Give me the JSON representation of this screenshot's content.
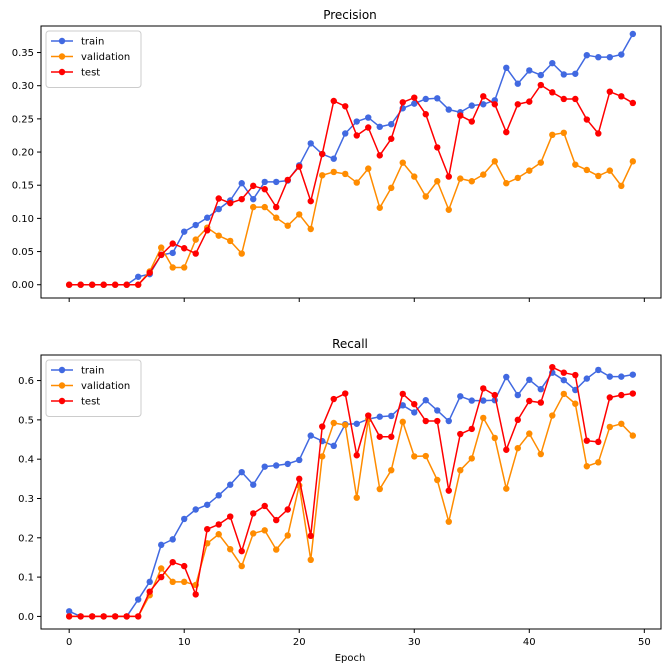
{
  "chart_data": [
    {
      "type": "line",
      "title": "Precision",
      "xlabel": "",
      "ylabel": "",
      "xlim": [
        -2.45,
        51.45
      ],
      "ylim": [
        -0.02,
        0.39
      ],
      "xticks": [
        0,
        10,
        20,
        30,
        40,
        50
      ],
      "xtick_labels": [
        "",
        "",
        "",
        "",
        "",
        ""
      ],
      "yticks": [
        0.0,
        0.05,
        0.1,
        0.15,
        0.2,
        0.25,
        0.3,
        0.35
      ],
      "ytick_labels": [
        "0.00",
        "0.05",
        "0.10",
        "0.15",
        "0.20",
        "0.25",
        "0.30",
        "0.35"
      ],
      "legend": "upper-left",
      "grid": false,
      "x": [
        0,
        1,
        2,
        3,
        4,
        5,
        6,
        7,
        8,
        9,
        10,
        11,
        12,
        13,
        14,
        15,
        16,
        17,
        18,
        19,
        20,
        21,
        22,
        23,
        24,
        25,
        26,
        27,
        28,
        29,
        30,
        31,
        32,
        33,
        34,
        35,
        36,
        37,
        38,
        39,
        40,
        41,
        42,
        43,
        44,
        45,
        46,
        47,
        48,
        49
      ],
      "series": [
        {
          "name": "train",
          "color": "#4169e1",
          "values": [
            0,
            0,
            0,
            0,
            0,
            0,
            0.012,
            0.016,
            0.045,
            0.048,
            0.08,
            0.09,
            0.101,
            0.114,
            0.127,
            0.153,
            0.129,
            0.155,
            0.155,
            0.157,
            0.18,
            0.213,
            0.197,
            0.19,
            0.228,
            0.246,
            0.252,
            0.238,
            0.242,
            0.266,
            0.273,
            0.28,
            0.281,
            0.264,
            0.26,
            0.27,
            0.272,
            0.278,
            0.327,
            0.303,
            0.323,
            0.316,
            0.334,
            0.317,
            0.318,
            0.346,
            0.343,
            0.343,
            0.347,
            0.378
          ]
        },
        {
          "name": "validation",
          "color": "#ff8c00",
          "values": [
            0,
            0,
            0,
            0,
            0,
            0,
            0,
            0.02,
            0.056,
            0.026,
            0.026,
            0.068,
            0.086,
            0.074,
            0.066,
            0.047,
            0.117,
            0.117,
            0.101,
            0.089,
            0.106,
            0.084,
            0.165,
            0.17,
            0.167,
            0.154,
            0.175,
            0.116,
            0.146,
            0.184,
            0.163,
            0.133,
            0.156,
            0.113,
            0.16,
            0.156,
            0.166,
            0.186,
            0.153,
            0.161,
            0.172,
            0.184,
            0.226,
            0.229,
            0.181,
            0.173,
            0.164,
            0.172,
            0.149,
            0.186
          ]
        },
        {
          "name": "test",
          "color": "#ff0000",
          "values": [
            0,
            0,
            0,
            0,
            0,
            0,
            0,
            0.018,
            0.045,
            0.062,
            0.055,
            0.047,
            0.082,
            0.13,
            0.123,
            0.129,
            0.149,
            0.144,
            0.117,
            0.158,
            0.178,
            0.126,
            0.197,
            0.277,
            0.269,
            0.225,
            0.237,
            0.195,
            0.22,
            0.275,
            0.282,
            0.257,
            0.207,
            0.163,
            0.255,
            0.246,
            0.284,
            0.272,
            0.23,
            0.272,
            0.276,
            0.301,
            0.29,
            0.28,
            0.28,
            0.249,
            0.228,
            0.291,
            0.284,
            0.274
          ]
        }
      ]
    },
    {
      "type": "line",
      "title": "Recall",
      "xlabel": "Epoch",
      "ylabel": "",
      "xlim": [
        -2.45,
        51.45
      ],
      "ylim": [
        -0.032,
        0.665
      ],
      "xticks": [
        0,
        10,
        20,
        30,
        40,
        50
      ],
      "xtick_labels": [
        "0",
        "10",
        "20",
        "30",
        "40",
        "50"
      ],
      "yticks": [
        0.0,
        0.1,
        0.2,
        0.3,
        0.4,
        0.5,
        0.6
      ],
      "ytick_labels": [
        "0.0",
        "0.1",
        "0.2",
        "0.3",
        "0.4",
        "0.5",
        "0.6"
      ],
      "legend": "upper-left",
      "grid": false,
      "x": [
        0,
        1,
        2,
        3,
        4,
        5,
        6,
        7,
        8,
        9,
        10,
        11,
        12,
        13,
        14,
        15,
        16,
        17,
        18,
        19,
        20,
        21,
        22,
        23,
        24,
        25,
        26,
        27,
        28,
        29,
        30,
        31,
        32,
        33,
        34,
        35,
        36,
        37,
        38,
        39,
        40,
        41,
        42,
        43,
        44,
        45,
        46,
        47,
        48,
        49
      ],
      "series": [
        {
          "name": "train",
          "color": "#4169e1",
          "values": [
            0.013,
            0,
            0,
            0,
            0,
            0,
            0.043,
            0.088,
            0.182,
            0.196,
            0.248,
            0.272,
            0.284,
            0.308,
            0.335,
            0.367,
            0.335,
            0.381,
            0.384,
            0.388,
            0.398,
            0.46,
            0.446,
            0.434,
            0.489,
            0.49,
            0.502,
            0.508,
            0.51,
            0.537,
            0.519,
            0.55,
            0.524,
            0.497,
            0.56,
            0.549,
            0.549,
            0.55,
            0.609,
            0.563,
            0.602,
            0.578,
            0.62,
            0.601,
            0.576,
            0.605,
            0.627,
            0.61,
            0.61,
            0.615
          ]
        },
        {
          "name": "validation",
          "color": "#ff8c00",
          "values": [
            0,
            0,
            0,
            0,
            0,
            0,
            0,
            0.054,
            0.122,
            0.088,
            0.088,
            0.08,
            0.186,
            0.209,
            0.171,
            0.128,
            0.211,
            0.219,
            0.17,
            0.206,
            0.333,
            0.144,
            0.407,
            0.492,
            0.487,
            0.302,
            0.501,
            0.324,
            0.372,
            0.495,
            0.407,
            0.408,
            0.347,
            0.241,
            0.372,
            0.402,
            0.505,
            0.454,
            0.325,
            0.428,
            0.465,
            0.413,
            0.511,
            0.566,
            0.541,
            0.382,
            0.392,
            0.482,
            0.49,
            0.46
          ]
        },
        {
          "name": "test",
          "color": "#ff0000",
          "values": [
            0,
            0,
            0,
            0,
            0,
            0,
            0,
            0.063,
            0.1,
            0.138,
            0.128,
            0.056,
            0.222,
            0.234,
            0.254,
            0.166,
            0.262,
            0.281,
            0.245,
            0.272,
            0.35,
            0.205,
            0.483,
            0.553,
            0.567,
            0.41,
            0.511,
            0.457,
            0.457,
            0.566,
            0.54,
            0.497,
            0.497,
            0.32,
            0.464,
            0.477,
            0.58,
            0.563,
            0.424,
            0.5,
            0.548,
            0.544,
            0.634,
            0.62,
            0.614,
            0.447,
            0.444,
            0.557,
            0.563,
            0.567
          ]
        }
      ]
    }
  ]
}
